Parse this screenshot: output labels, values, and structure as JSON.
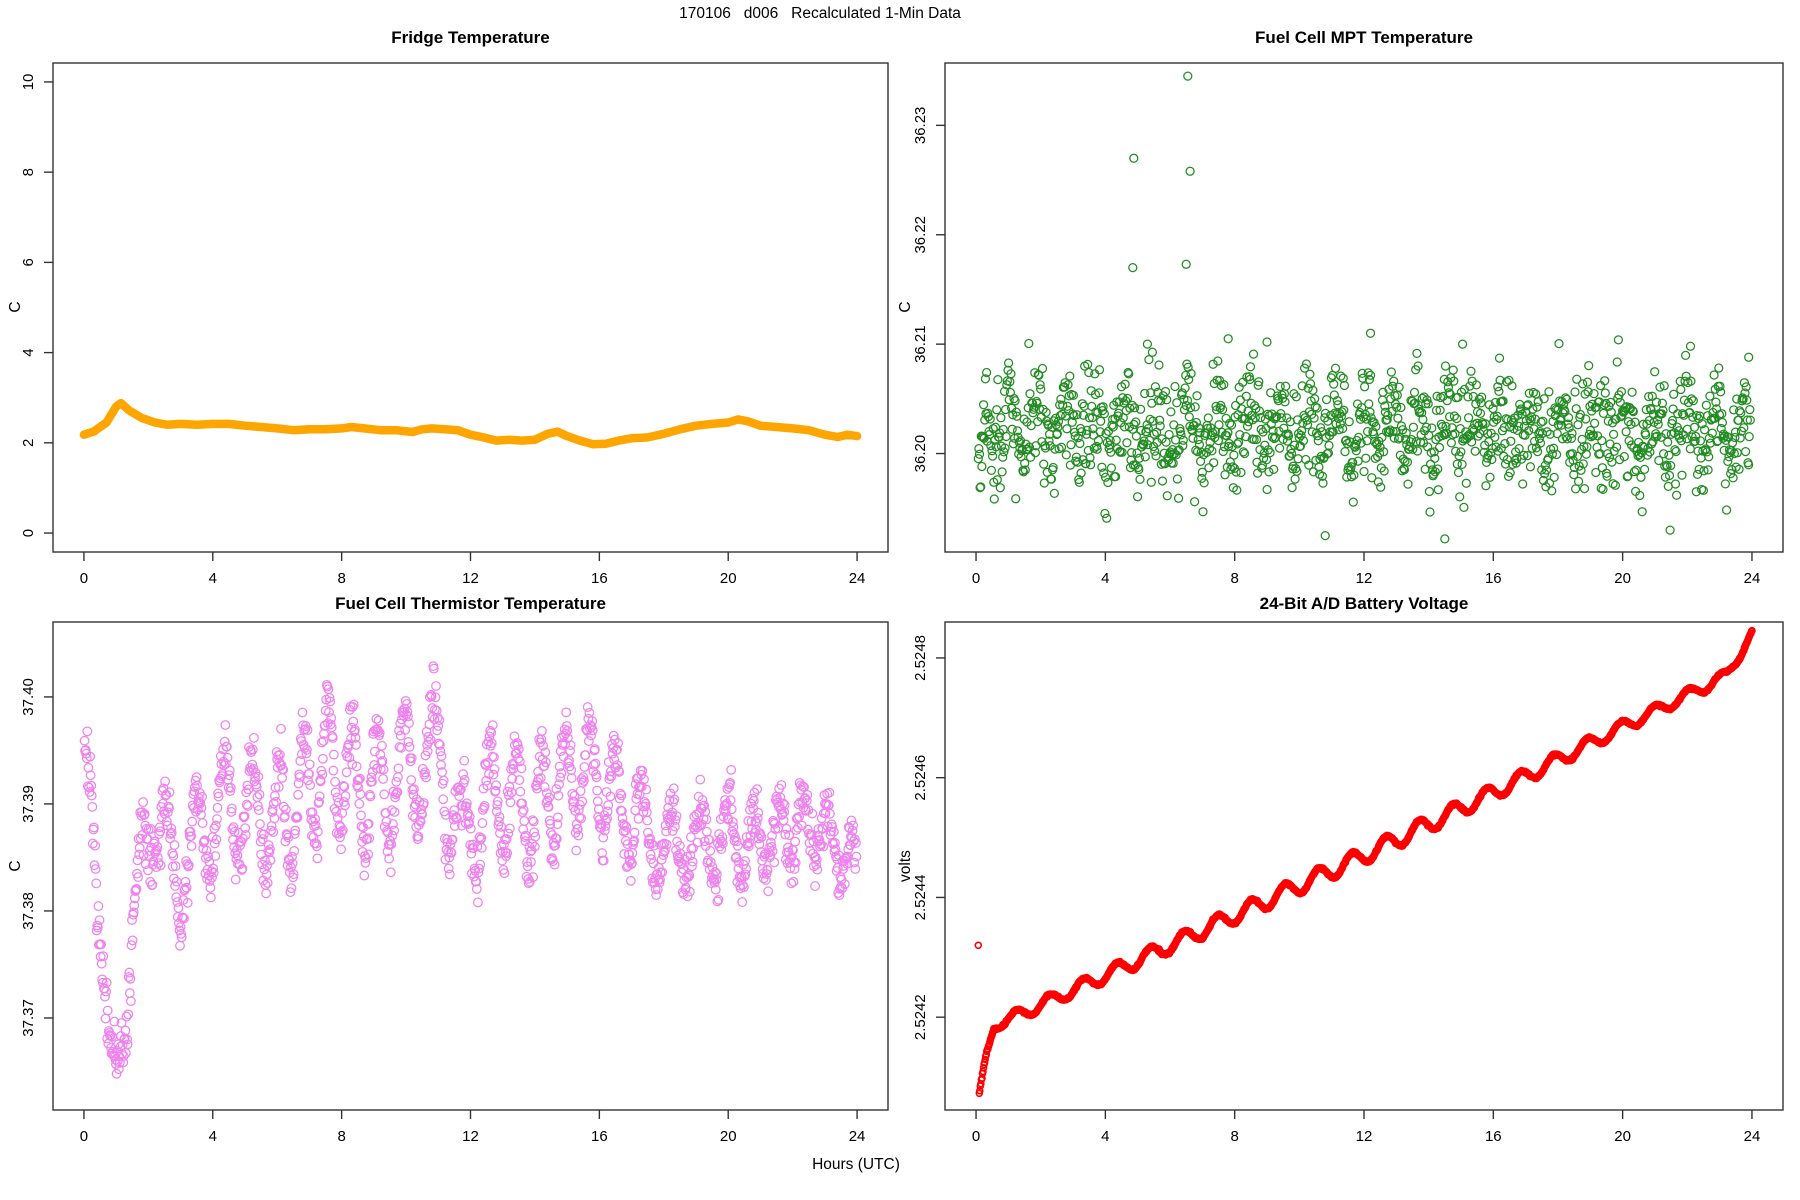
{
  "figure": {
    "main_title": "170106   d006   Recalculated 1-Min Data",
    "x_axis_label": "Hours (UTC)",
    "background_color": "#FFFFFF",
    "text_color": "#000000",
    "axis_line_color": "#333333"
  },
  "chart_data": [
    {
      "type": "line",
      "title": "Fridge Temperature",
      "ylabel": "C",
      "xlabel": "Hours (UTC)",
      "color": "#FFA500",
      "line_width": 8.5,
      "xlim": [
        -0.96,
        24.96
      ],
      "ylim": [
        -0.42,
        10.42
      ],
      "xticks": {
        "values": [
          0,
          4,
          8,
          12,
          16,
          20,
          24
        ],
        "labels": [
          "0",
          "4",
          "8",
          "12",
          "16",
          "20",
          "24"
        ]
      },
      "yticks": {
        "values": [
          0,
          2,
          4,
          6,
          8,
          10
        ],
        "labels": [
          "0",
          "2",
          "4",
          "6",
          "8",
          "10"
        ]
      },
      "points": [
        [
          0,
          2.18
        ],
        [
          0.3,
          2.25
        ],
        [
          0.7,
          2.45
        ],
        [
          1.0,
          2.8
        ],
        [
          1.15,
          2.88
        ],
        [
          1.4,
          2.72
        ],
        [
          1.8,
          2.55
        ],
        [
          2.2,
          2.45
        ],
        [
          2.6,
          2.4
        ],
        [
          3.0,
          2.42
        ],
        [
          3.5,
          2.4
        ],
        [
          4.0,
          2.42
        ],
        [
          4.5,
          2.42
        ],
        [
          5.0,
          2.38
        ],
        [
          5.5,
          2.35
        ],
        [
          6.0,
          2.32
        ],
        [
          6.5,
          2.28
        ],
        [
          7.0,
          2.3
        ],
        [
          7.5,
          2.3
        ],
        [
          8.0,
          2.32
        ],
        [
          8.3,
          2.35
        ],
        [
          8.7,
          2.32
        ],
        [
          9.2,
          2.28
        ],
        [
          9.7,
          2.28
        ],
        [
          10.2,
          2.24
        ],
        [
          10.5,
          2.3
        ],
        [
          10.8,
          2.32
        ],
        [
          11.2,
          2.3
        ],
        [
          11.6,
          2.28
        ],
        [
          12.0,
          2.18
        ],
        [
          12.4,
          2.12
        ],
        [
          12.8,
          2.05
        ],
        [
          13.2,
          2.07
        ],
        [
          13.6,
          2.05
        ],
        [
          14.0,
          2.07
        ],
        [
          14.4,
          2.2
        ],
        [
          14.7,
          2.25
        ],
        [
          15.0,
          2.15
        ],
        [
          15.4,
          2.05
        ],
        [
          15.8,
          1.97
        ],
        [
          16.2,
          1.98
        ],
        [
          16.6,
          2.05
        ],
        [
          17.0,
          2.1
        ],
        [
          17.5,
          2.12
        ],
        [
          18.0,
          2.2
        ],
        [
          18.5,
          2.3
        ],
        [
          19.0,
          2.38
        ],
        [
          19.5,
          2.42
        ],
        [
          20.0,
          2.45
        ],
        [
          20.3,
          2.52
        ],
        [
          20.6,
          2.48
        ],
        [
          21.0,
          2.38
        ],
        [
          21.5,
          2.35
        ],
        [
          22.0,
          2.32
        ],
        [
          22.5,
          2.28
        ],
        [
          23.0,
          2.18
        ],
        [
          23.4,
          2.13
        ],
        [
          23.7,
          2.18
        ],
        [
          24.0,
          2.15
        ]
      ]
    },
    {
      "type": "scatter",
      "title": "Fuel Cell MPT Temperature",
      "ylabel": "C",
      "xlabel": "Hours (UTC)",
      "color": "#228B22",
      "marker": "open-circle",
      "marker_radius": 4.0,
      "xlim": [
        -0.96,
        24.96
      ],
      "ylim": [
        36.191,
        36.2357
      ],
      "xticks": {
        "values": [
          0,
          4,
          8,
          12,
          16,
          20,
          24
        ],
        "labels": [
          "0",
          "4",
          "8",
          "12",
          "16",
          "20",
          "24"
        ]
      },
      "yticks": {
        "values": [
          36.2,
          36.21,
          36.22,
          36.23
        ],
        "labels": [
          "36.20",
          "36.21",
          "36.22",
          "36.23"
        ]
      },
      "summary": {
        "n_points": 1300,
        "mean_C": 36.2022,
        "typical_band_C": [
          36.193,
          36.211
        ]
      },
      "gen": {
        "seed": 42,
        "n": 1300,
        "t_start": 0.07,
        "t_end": 23.95,
        "base": 36.2022,
        "wave_amp": 0.002,
        "wave_period": 0.9,
        "wobble_amp": 1.2,
        "wobble_rate": 0.47,
        "noise_sd": 0.0024,
        "clip": [
          36.1928,
          36.2112
        ],
        "early_dip_until": 0.3,
        "early_dip_slope": 0.02
      },
      "outliers": [
        [
          4.88,
          36.227
        ],
        [
          6.55,
          36.2345
        ],
        [
          6.62,
          36.2258
        ],
        [
          4.85,
          36.217
        ],
        [
          6.5,
          36.2173
        ],
        [
          5.3,
          36.21
        ],
        [
          7.8,
          36.2105
        ],
        [
          9.0,
          36.2102
        ],
        [
          12.2,
          36.211
        ],
        [
          15.05,
          36.21
        ],
        [
          22.1,
          36.2098
        ],
        [
          23.9,
          36.2088
        ],
        [
          10.8,
          36.1925
        ],
        [
          14.5,
          36.1922
        ]
      ]
    },
    {
      "type": "scatter",
      "title": "Fuel Cell Thermistor Temperature",
      "ylabel": "C",
      "xlabel": "Hours (UTC)",
      "color": "#EE82EE",
      "marker": "open-circle",
      "marker_radius": 4.3,
      "xlim": [
        -0.96,
        24.96
      ],
      "ylim": [
        37.3614,
        37.407
      ],
      "xticks": {
        "values": [
          0,
          4,
          8,
          12,
          16,
          20,
          24
        ],
        "labels": [
          "0",
          "4",
          "8",
          "12",
          "16",
          "20",
          "24"
        ]
      },
      "yticks": {
        "values": [
          37.37,
          37.38,
          37.39,
          37.4
        ],
        "labels": [
          "37.37",
          "37.38",
          "37.39",
          "37.40"
        ]
      },
      "summary": {
        "n_points": 1400,
        "start_C": 37.397,
        "dip_C": 37.364,
        "dip_hour": 1.0,
        "range_C": [
          37.363,
          37.405
        ]
      },
      "gen": {
        "seed": 7,
        "n": 1400,
        "t_start": 0.02,
        "t_end": 23.98,
        "wave_period": 0.82,
        "wobble_amp": 0.9,
        "wobble_rate": 0.85,
        "noise_sd": 0.0013,
        "clip": [
          37.3625,
          37.4058
        ],
        "base_points": [
          [
            0,
            37.397
          ],
          [
            0.2,
            37.39
          ],
          [
            0.4,
            37.381
          ],
          [
            0.6,
            37.374
          ],
          [
            0.8,
            37.368
          ],
          [
            1.0,
            37.364
          ],
          [
            1.2,
            37.368
          ],
          [
            1.5,
            37.377
          ],
          [
            1.8,
            37.385
          ],
          [
            2.1,
            37.389
          ],
          [
            2.5,
            37.386
          ],
          [
            3.0,
            37.383
          ],
          [
            3.5,
            37.387
          ],
          [
            4.0,
            37.389
          ],
          [
            4.5,
            37.39
          ],
          [
            5.0,
            37.39
          ],
          [
            5.5,
            37.389
          ],
          [
            6.0,
            37.388
          ],
          [
            6.5,
            37.39
          ],
          [
            7.0,
            37.392
          ],
          [
            7.5,
            37.394
          ],
          [
            8.0,
            37.393
          ],
          [
            8.5,
            37.392
          ],
          [
            9.0,
            37.391
          ],
          [
            9.5,
            37.392
          ],
          [
            10.0,
            37.393
          ],
          [
            10.5,
            37.394
          ],
          [
            11.0,
            37.395
          ],
          [
            11.3,
            37.392
          ],
          [
            11.7,
            37.386
          ],
          [
            12.0,
            37.388
          ],
          [
            12.5,
            37.39
          ],
          [
            13.0,
            37.391
          ],
          [
            13.5,
            37.39
          ],
          [
            14.0,
            37.389
          ],
          [
            14.5,
            37.391
          ],
          [
            15.0,
            37.392
          ],
          [
            15.5,
            37.393
          ],
          [
            16.0,
            37.392
          ],
          [
            16.5,
            37.391
          ],
          [
            17.0,
            37.389
          ],
          [
            17.5,
            37.387
          ],
          [
            18.0,
            37.386
          ],
          [
            18.5,
            37.386
          ],
          [
            19.0,
            37.386
          ],
          [
            19.5,
            37.386
          ],
          [
            20.0,
            37.387
          ],
          [
            20.5,
            37.386
          ],
          [
            21.0,
            37.387
          ],
          [
            21.5,
            37.387
          ],
          [
            22.0,
            37.388
          ],
          [
            22.5,
            37.388
          ],
          [
            23.0,
            37.387
          ],
          [
            23.5,
            37.386
          ],
          [
            24.0,
            37.383
          ]
        ],
        "amp_points": [
          [
            0,
            0.0012
          ],
          [
            1.0,
            0.0015
          ],
          [
            1.6,
            0.0035
          ],
          [
            2.4,
            0.0042
          ],
          [
            4,
            0.005
          ],
          [
            6,
            0.0055
          ],
          [
            8,
            0.0058
          ],
          [
            10,
            0.0058
          ],
          [
            12,
            0.0052
          ],
          [
            14,
            0.0052
          ],
          [
            16,
            0.0048
          ],
          [
            17.5,
            0.0042
          ],
          [
            19,
            0.0035
          ],
          [
            21,
            0.0032
          ],
          [
            24,
            0.003
          ]
        ]
      }
    },
    {
      "type": "scatter",
      "title": "24-Bit A/D Battery Voltage",
      "ylabel": "volts",
      "xlabel": "Hours (UTC)",
      "color": "#FF0000",
      "marker": "open-circle",
      "marker_radius": 3.0,
      "xlim": [
        -0.96,
        24.96
      ],
      "ylim": [
        2.524045,
        2.52486
      ],
      "xticks": {
        "values": [
          0,
          4,
          8,
          12,
          16,
          20,
          24
        ],
        "labels": [
          "0",
          "4",
          "8",
          "12",
          "16",
          "20",
          "24"
        ]
      },
      "yticks": {
        "values": [
          2.5242,
          2.5244,
          2.5246,
          2.5248
        ],
        "labels": [
          "2.5242",
          "2.5244",
          "2.5246",
          "2.5248"
        ]
      },
      "summary": {
        "n_points": 1440,
        "start_volts": 2.52407,
        "end_volts": 2.52484,
        "ripple_period_hours": 1.04
      },
      "gen": {
        "seed": 3,
        "n": 1440,
        "t_start": 0.1,
        "t_end": 24.0,
        "wave_period": 1.04,
        "phase": 0.4,
        "noise_sd": 8e-07,
        "trend_points": [
          [
            0.1,
            2.52407
          ],
          [
            0.3,
            2.52413
          ],
          [
            0.55,
            2.524185
          ],
          [
            4,
            2.52427
          ],
          [
            8,
            2.52437
          ],
          [
            12,
            2.52447
          ],
          [
            16,
            2.524575
          ],
          [
            20,
            2.524685
          ],
          [
            23.2,
            2.52477
          ],
          [
            24,
            2.52484
          ]
        ],
        "amp_points": [
          [
            0.1,
            4e-06
          ],
          [
            1,
            1e-05
          ],
          [
            3,
            1.1e-05
          ],
          [
            7,
            1.3e-05
          ],
          [
            10,
            1.4e-05
          ],
          [
            14,
            1.4e-05
          ],
          [
            17,
            1.2e-05
          ],
          [
            20,
            1e-05
          ],
          [
            22.5,
            9e-06
          ],
          [
            24,
            8e-06
          ]
        ]
      },
      "outliers": [
        [
          0.07,
          2.52432
        ]
      ]
    }
  ]
}
